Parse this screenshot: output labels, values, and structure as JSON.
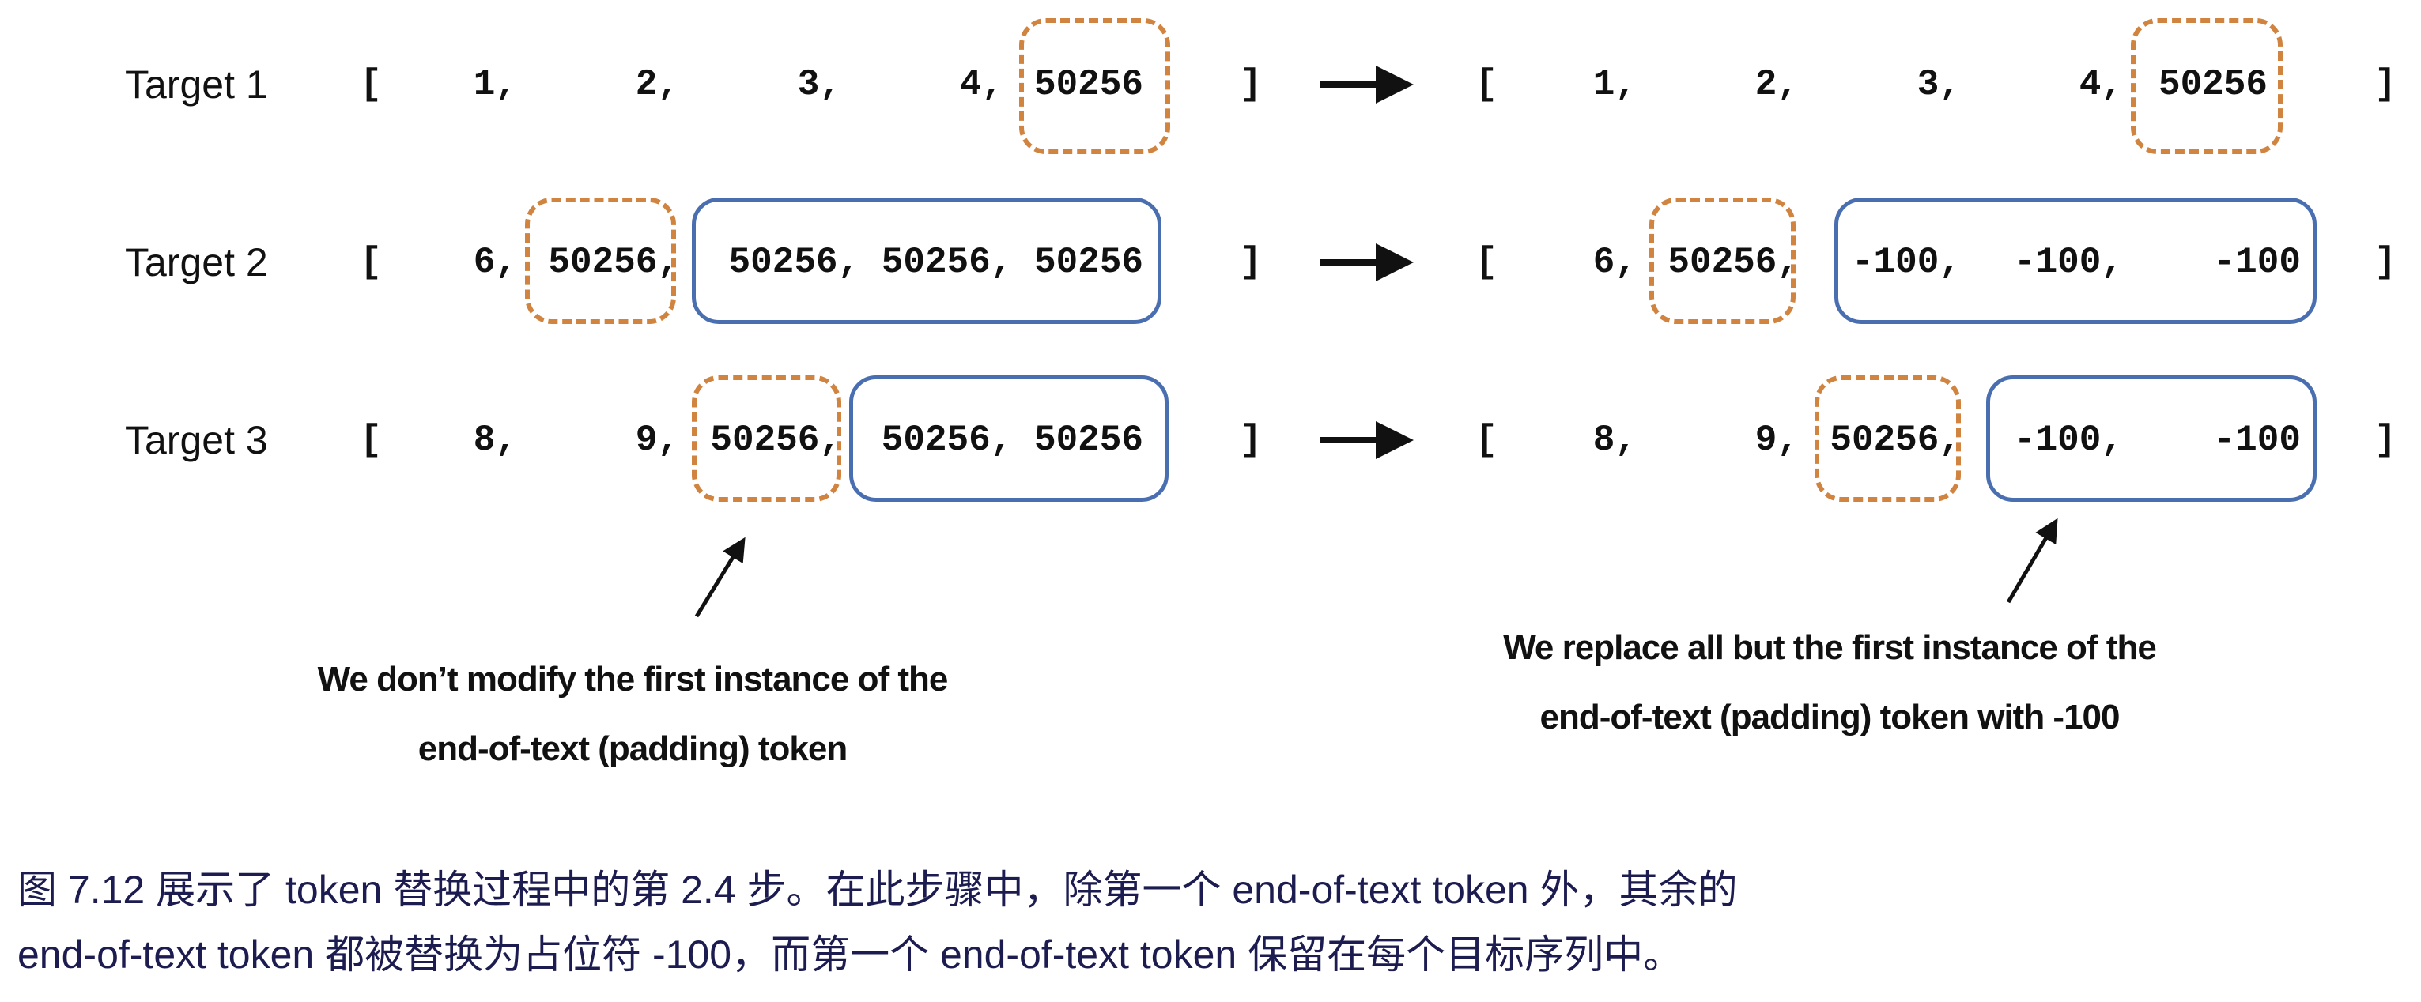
{
  "rows": [
    {
      "label": "Target 1",
      "before": [
        "1,",
        "2,",
        "3,",
        "4,",
        "50256"
      ],
      "after": [
        "1,",
        "2,",
        "3,",
        "4,",
        "50256"
      ]
    },
    {
      "label": "Target 2",
      "before": [
        "6,",
        "50256,",
        "50256, 50256, 50256"
      ],
      "after": [
        "6,",
        "50256,",
        "-100,",
        "-100,",
        "-100"
      ]
    },
    {
      "label": "Target 3",
      "before": [
        "8,",
        "9,",
        "50256,",
        "50256, 50256"
      ],
      "after": [
        "8,",
        "9,",
        "50256,",
        "-100,",
        "-100"
      ]
    }
  ],
  "brackets": {
    "open": "[",
    "close": "]"
  },
  "annotations": {
    "left": [
      "We don’t modify the first instance of the",
      "end-of-text (padding) token"
    ],
    "right": [
      "We replace all but the first instance of the",
      "end-of-text (padding) token with -100"
    ]
  },
  "caption": [
    "图 7.12 展示了 token 替换过程中的第 2.4 步。在此步骤中，除第一个 end-of-text token 外，其余的",
    "end-of-text token 都被替换为占位符 -100，而第一个 end-of-text token 保留在每个目标序列中。"
  ],
  "colors": {
    "first_eot_box": "#d0843f",
    "replaced_box": "#4a6fb0",
    "caption_text": "#1c1c50"
  }
}
